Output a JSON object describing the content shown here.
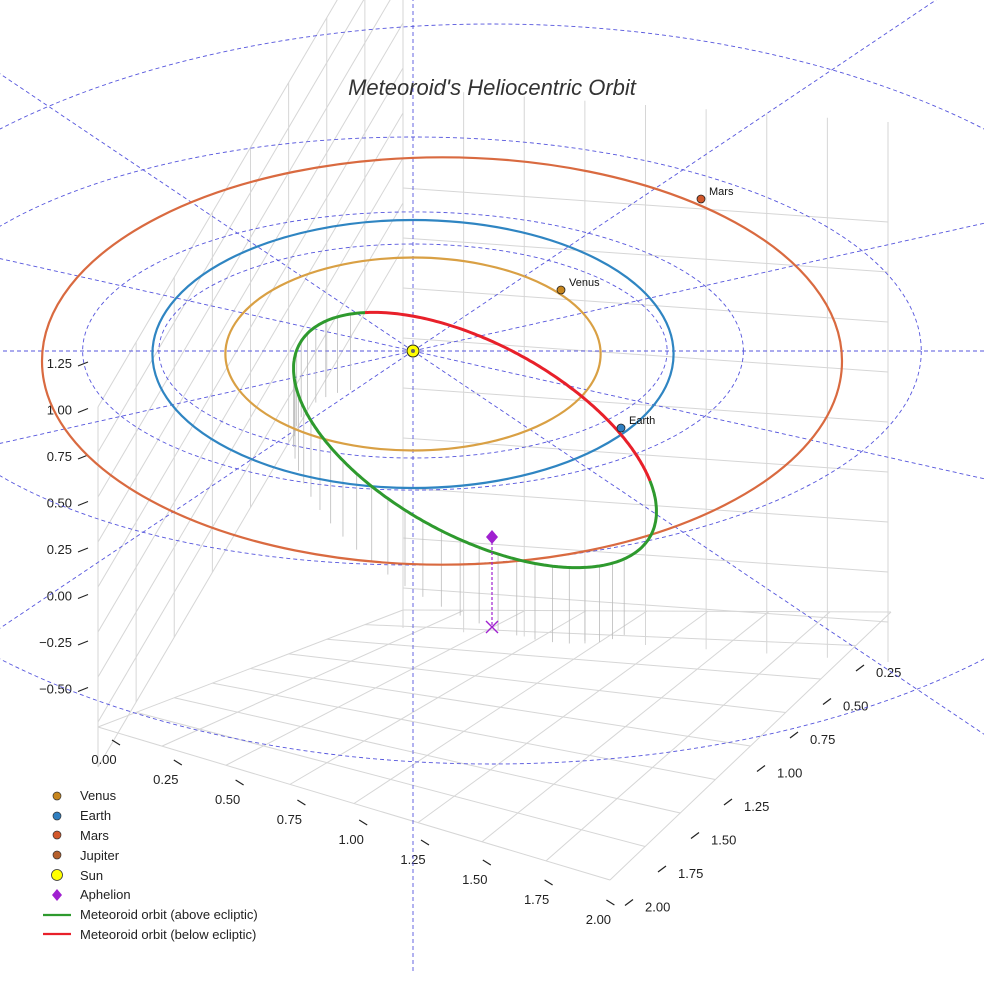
{
  "chart_data": {
    "type": "scatter",
    "title": "Meteoroid's Heliocentric Orbit",
    "xlabel": "",
    "ylabel": "",
    "zlabel": "",
    "x_ticks": [
      "0.00",
      "0.25",
      "0.50",
      "0.75",
      "1.00",
      "1.25",
      "1.50",
      "1.75",
      "2.00"
    ],
    "y_ticks": [
      "0.25",
      "0.50",
      "0.75",
      "1.00",
      "1.25",
      "1.50",
      "1.75",
      "2.00"
    ],
    "z_ticks": [
      "1.25",
      "1.00",
      "0.75",
      "0.50",
      "0.25",
      "0.00",
      "−0.25",
      "−0.50"
    ],
    "planets": [
      {
        "name": "Venus",
        "a_au": 0.72,
        "color": "#c8861e"
      },
      {
        "name": "Earth",
        "a_au": 1.0,
        "color": "#2f7fc1"
      },
      {
        "name": "Mars",
        "a_au": 1.52,
        "color": "#d2572a"
      }
    ],
    "legend": [
      {
        "label": "Venus",
        "marker": "dot",
        "color": "#c8861e"
      },
      {
        "label": "Earth",
        "marker": "dot",
        "color": "#2f7fc1"
      },
      {
        "label": "Mars",
        "marker": "dot",
        "color": "#d2572a"
      },
      {
        "label": "Jupiter",
        "marker": "dot",
        "color": "#b5602c"
      },
      {
        "label": "Sun",
        "marker": "sun",
        "color": "#ffff00"
      },
      {
        "label": "Aphelion",
        "marker": "diamond",
        "color": "#a020d0"
      },
      {
        "label": "Meteoroid orbit (above ecliptic)",
        "marker": "line",
        "color": "#2e9a2e"
      },
      {
        "label": "Meteoroid orbit (below ecliptic)",
        "marker": "line",
        "color": "#e8202a"
      }
    ],
    "legend_position": "bottom-left",
    "colors": {
      "orbit_above": "#2e9a2e",
      "orbit_below": "#e8202a",
      "venus_orbit": "#d9a044",
      "earth_orbit": "#2f85c2",
      "mars_orbit": "#d96a40",
      "reference_grid": "#5555dd",
      "sun": "#ffff00",
      "aphelion": "#a020d0"
    },
    "grid": true
  }
}
